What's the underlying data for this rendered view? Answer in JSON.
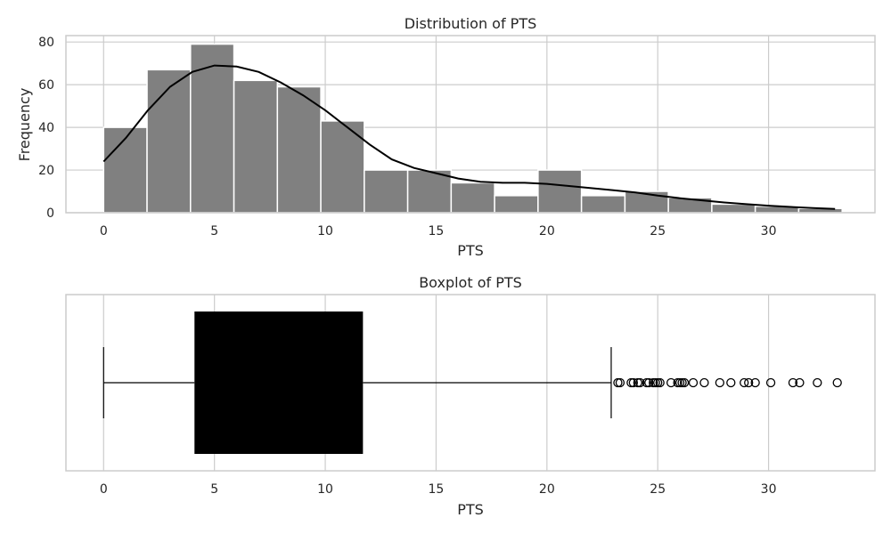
{
  "chart_data": [
    {
      "type": "bar",
      "title": "Distribution of PTS",
      "xlabel": "PTS",
      "ylabel": "Frequency",
      "xlim": [
        -1.7,
        34.8
      ],
      "ylim": [
        0,
        83
      ],
      "x_ticks": [
        0,
        5,
        10,
        15,
        20,
        25,
        30
      ],
      "y_ticks": [
        0,
        20,
        40,
        60,
        80
      ],
      "grid": true,
      "bin_width": 1.96,
      "bins": [
        {
          "start": 0.0,
          "end": 1.96,
          "count": 40
        },
        {
          "start": 1.96,
          "end": 3.92,
          "count": 67
        },
        {
          "start": 3.92,
          "end": 5.88,
          "count": 79
        },
        {
          "start": 5.88,
          "end": 7.84,
          "count": 62
        },
        {
          "start": 7.84,
          "end": 9.8,
          "count": 59
        },
        {
          "start": 9.8,
          "end": 11.76,
          "count": 43
        },
        {
          "start": 11.76,
          "end": 13.72,
          "count": 20
        },
        {
          "start": 13.72,
          "end": 15.68,
          "count": 20
        },
        {
          "start": 15.68,
          "end": 17.64,
          "count": 14
        },
        {
          "start": 17.64,
          "end": 19.6,
          "count": 8
        },
        {
          "start": 19.6,
          "end": 21.56,
          "count": 20
        },
        {
          "start": 21.56,
          "end": 23.52,
          "count": 8
        },
        {
          "start": 23.52,
          "end": 25.48,
          "count": 10
        },
        {
          "start": 25.48,
          "end": 27.44,
          "count": 7
        },
        {
          "start": 27.44,
          "end": 29.4,
          "count": 4
        },
        {
          "start": 29.4,
          "end": 31.36,
          "count": 3
        },
        {
          "start": 31.36,
          "end": 33.32,
          "count": 2
        }
      ],
      "kde": {
        "x": [
          0,
          1,
          2,
          3,
          4,
          5,
          6,
          7,
          8,
          9,
          10,
          11,
          12,
          13,
          14,
          15,
          16,
          17,
          18,
          19,
          20,
          21,
          22,
          23,
          24,
          25,
          26,
          27,
          28,
          29,
          30,
          31,
          32,
          33
        ],
        "y": [
          24,
          35,
          48,
          59,
          66,
          69,
          68.5,
          66,
          61,
          55,
          48,
          40,
          32,
          25,
          21,
          18.5,
          16,
          14.5,
          14,
          14,
          13.5,
          12.5,
          11.5,
          10.5,
          9.5,
          8,
          6.8,
          5.8,
          4.8,
          4,
          3.3,
          2.7,
          2.2,
          1.8
        ]
      },
      "bar_color": "#808080",
      "line_color": "#000000"
    },
    {
      "type": "box",
      "title": "Boxplot of PTS",
      "xlabel": "PTS",
      "xlim": [
        -1.7,
        34.8
      ],
      "x_ticks": [
        0,
        5,
        10,
        15,
        20,
        25,
        30
      ],
      "grid": true,
      "whisker_low": 0,
      "q1": 4.1,
      "q3": 11.7,
      "whisker_high": 22.9,
      "outliers": [
        23.2,
        23.3,
        23.8,
        23.9,
        24.1,
        24.2,
        24.5,
        24.6,
        24.8,
        24.9,
        25.0,
        25.1,
        25.6,
        25.9,
        26.0,
        26.1,
        26.2,
        26.6,
        27.1,
        27.8,
        28.3,
        28.9,
        29.1,
        29.4,
        30.1,
        31.1,
        31.4,
        32.2,
        33.1
      ],
      "box_color": "#000000"
    }
  ]
}
